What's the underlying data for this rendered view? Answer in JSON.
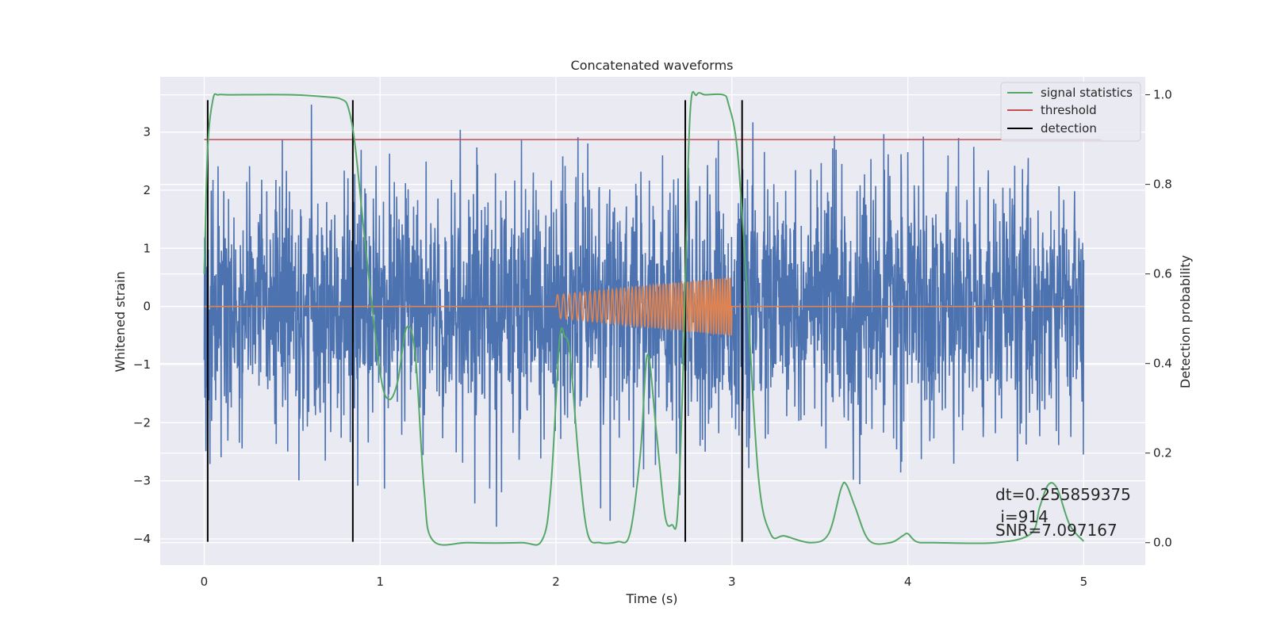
{
  "chart_data": {
    "type": "line",
    "title": "Concatenated waveforms",
    "xlabel": "Time (s)",
    "ylabel": "Whitened strain",
    "ylabel_right": "Detection probability",
    "xlim": [
      -0.25,
      5.35
    ],
    "ylim": [
      -4.45,
      3.95
    ],
    "ylim_right": [
      -0.05,
      1.04
    ],
    "xticks": [
      "0",
      "1",
      "2",
      "3",
      "4",
      "5"
    ],
    "xtick_values": [
      0,
      1,
      2,
      3,
      4,
      5
    ],
    "yticks": [
      "−4",
      "−3",
      "−2",
      "−1",
      "0",
      "1",
      "2",
      "3"
    ],
    "ytick_values": [
      -4,
      -3,
      -2,
      -1,
      0,
      1,
      2,
      3
    ],
    "yticks_right": [
      "0.0",
      "0.2",
      "0.4",
      "0.6",
      "0.8",
      "1.0"
    ],
    "ytick_values_right": [
      0.0,
      0.2,
      0.4,
      0.6,
      0.8,
      1.0
    ],
    "grid": true,
    "legend_position": "top-right",
    "colors": {
      "background": "#eaeaf2",
      "grid": "#ffffff",
      "noise": "#4c72b0",
      "template": "#dd8452",
      "statistic": "#55a868",
      "threshold": "#c44e52",
      "detection": "#000000"
    },
    "noise": {
      "x_range": [
        0,
        5
      ],
      "amplitude_range": [
        -4.0,
        3.6
      ]
    },
    "template": {
      "x_range": [
        2.0,
        3.0
      ],
      "amplitude_start": 0.2,
      "amplitude_end": 0.5
    },
    "series": [
      {
        "name": "signal statistics",
        "axis": "right",
        "x": [
          0.0,
          0.02,
          0.05,
          0.08,
          0.15,
          0.5,
          0.7,
          0.78,
          0.82,
          0.86,
          0.92,
          1.0,
          1.05,
          1.1,
          1.15,
          1.2,
          1.25,
          1.3,
          1.5,
          1.8,
          1.92,
          1.97,
          2.02,
          2.05,
          2.08,
          2.13,
          2.18,
          2.25,
          2.35,
          2.42,
          2.48,
          2.52,
          2.57,
          2.62,
          2.66,
          2.69,
          2.72,
          2.76,
          2.8,
          2.85,
          2.95,
          2.98,
          3.03,
          3.08,
          3.15,
          3.22,
          3.3,
          3.45,
          3.55,
          3.62,
          3.65,
          3.7,
          3.78,
          3.9,
          3.97,
          4.0,
          4.05,
          4.15,
          4.5,
          4.7,
          4.75,
          4.8,
          4.85,
          4.92,
          5.0
        ],
        "values": [
          0.6,
          0.88,
          0.99,
          1.0,
          1.0,
          1.0,
          0.995,
          0.99,
          0.97,
          0.88,
          0.65,
          0.38,
          0.32,
          0.36,
          0.48,
          0.42,
          0.12,
          0.005,
          0.0,
          0.0,
          0.005,
          0.12,
          0.45,
          0.46,
          0.42,
          0.18,
          0.02,
          0.0,
          0.002,
          0.02,
          0.2,
          0.42,
          0.25,
          0.06,
          0.04,
          0.06,
          0.35,
          0.94,
          1.0,
          1.0,
          1.0,
          0.98,
          0.88,
          0.6,
          0.15,
          0.02,
          0.015,
          0.0,
          0.02,
          0.12,
          0.13,
          0.08,
          0.005,
          0.0,
          0.015,
          0.02,
          0.002,
          0.0,
          0.0,
          0.02,
          0.08,
          0.13,
          0.12,
          0.04,
          0.003
        ]
      },
      {
        "name": "threshold",
        "axis": "right",
        "x": [
          0.0,
          5.1
        ],
        "values": [
          0.9,
          0.9
        ]
      },
      {
        "name": "detection",
        "axis": "left",
        "x": [
          0.02,
          0.845,
          2.735,
          3.058
        ],
        "y_range": [
          -4.05,
          3.55
        ]
      }
    ],
    "annotation": {
      "line1": "dt=0.255859375",
      "line2": " i=914",
      "line3": "SNR=7.097167"
    }
  }
}
